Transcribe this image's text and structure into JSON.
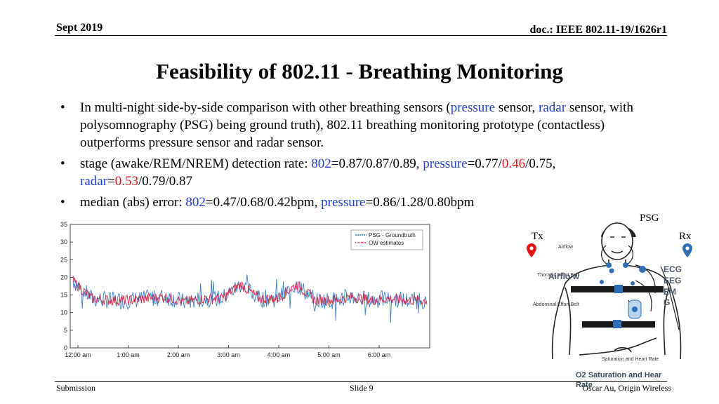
{
  "header": {
    "date": "Sept 2019",
    "doc": "doc.: IEEE 802.11-19/1626r1"
  },
  "title": "Feasibility of 802.11 - Breathing Monitoring",
  "bullets": {
    "b1": {
      "t1": "In multi-night side-by-side comparison with other breathing sensors (",
      "pressure": "pressure",
      "t2": " sensor, ",
      "radar": "radar",
      "t3": " sensor, with polysomnography (PSG) being ground truth), 802.11 breathing monitoring prototype (contactless) outperforms pressure sensor and radar sensor."
    },
    "b2": {
      "t1": "stage (awake/REM/NREM) detection rate: ",
      "k802": "802",
      "v802": "=0.87/0.87/0.89, ",
      "pressure": "pressure",
      "p1": "=0.77/",
      "p2": "0.46",
      "p3": "/0.75,",
      "radar": "radar",
      "r0": "=",
      "r1": "0.53",
      "r2": "/0.79/0.87"
    },
    "b3": {
      "t1": "median (abs) error: ",
      "k802": "802",
      "v802": "=0.47/0.68/0.42bpm, ",
      "pressure": "pressure",
      "p1": "=0.86/1.28/0.80bpm"
    }
  },
  "chart_data": {
    "type": "line",
    "x": [
      "12:00 am",
      "1:00 am",
      "2:00 am",
      "3:00 am",
      "4:00 am",
      "5:00 am",
      "6:00 am"
    ],
    "ylim": [
      0,
      35
    ],
    "yticks": [
      0,
      5,
      10,
      15,
      20,
      25,
      30,
      35
    ],
    "grid": false,
    "legend_position": "top-right",
    "series": [
      {
        "name": "PSG - Groundtruth",
        "color": "#2a74c8",
        "approx_values": [
          19,
          14,
          13.5,
          13.5,
          14,
          14.5,
          13,
          14,
          14,
          18,
          14,
          14,
          18,
          13.5,
          13.5,
          14.5,
          13.5,
          14,
          13.5,
          13.5
        ]
      },
      {
        "name": "OW estimates",
        "color": "#d0203a",
        "approx_values": [
          19,
          14,
          13.5,
          13.5,
          14,
          14.5,
          13,
          14,
          14,
          18,
          14,
          14,
          18,
          13.5,
          13.5,
          14.5,
          13.5,
          14,
          13.5,
          13.5
        ]
      }
    ]
  },
  "figure": {
    "psg": "PSG",
    "tx": "Tx",
    "rx": "Rx",
    "airflow": "Airflow",
    "thoracic": "Thoracic Effort Belt",
    "airflo_w": "Airflo w",
    "abdominal": "Abdominal Effort Belt",
    "ecg": "ECG",
    "eeg": "EEG",
    "em": "EM",
    "g": "G",
    "sat_hr": "Saturation and Heart Rate",
    "o2": "O2 Saturation and Hear Rate",
    "tx_color": "#e0141a",
    "rx_color": "#2f6fb5"
  },
  "footer": {
    "left": "Submission",
    "center": "Slide 9",
    "right": "Oscar Au, Origin Wireless"
  }
}
